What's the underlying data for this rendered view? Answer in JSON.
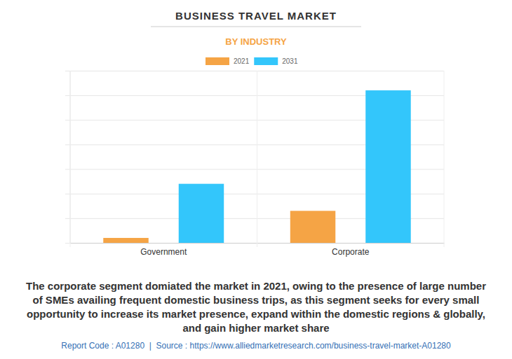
{
  "chart_data": {
    "type": "bar",
    "title": "BUSINESS TRAVEL MARKET",
    "subtitle": "BY INDUSTRY",
    "categories": [
      "Government",
      "Corporate"
    ],
    "series": [
      {
        "name": "2021",
        "color": "#f5a445",
        "values": [
          0.2,
          1.3
        ]
      },
      {
        "name": "2031",
        "color": "#33c6fb",
        "values": [
          2.4,
          6.2
        ]
      }
    ],
    "ylim": [
      0,
      7
    ],
    "yticks": [
      0,
      1,
      2,
      3,
      4,
      5,
      6,
      7
    ],
    "grid": true,
    "legend": "top",
    "tick_labels": "x",
    "annotations": [
      "The corporate segment domiated the market in 2021, owing to the presence of large number",
      "of SMEs availing frequent domestic business trips, as this segment seeks for every small",
      "opportunity to increase its market presence, expand within the domestic regions & globally,",
      "and gain higher market share"
    ],
    "source": "Report Code : A01280  |  Source : https://www.alliedmarketresearch.com/business-travel-market-A01280"
  }
}
